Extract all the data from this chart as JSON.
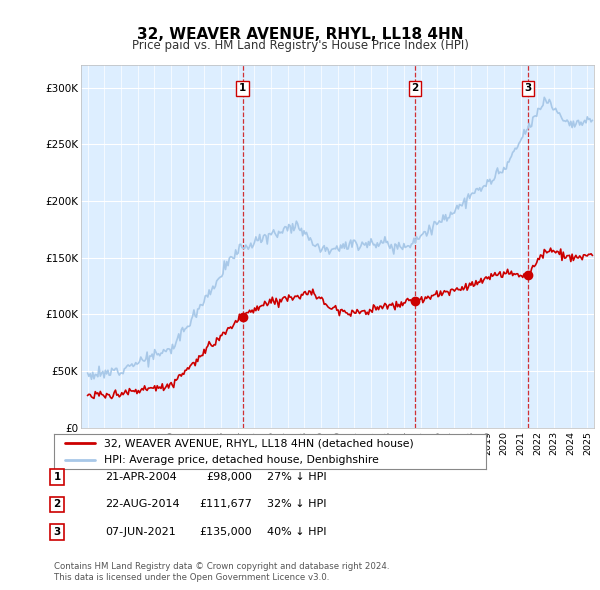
{
  "title": "32, WEAVER AVENUE, RHYL, LL18 4HN",
  "subtitle": "Price paid vs. HM Land Registry's House Price Index (HPI)",
  "hpi_color": "#a8c8e8",
  "price_color": "#cc0000",
  "background_chart": "#ddeeff",
  "sale_year_nums": [
    2004.31,
    2014.64,
    2021.44
  ],
  "sale_prices": [
    98000,
    111677,
    135000
  ],
  "sale_labels": [
    "1",
    "2",
    "3"
  ],
  "sale_hpi_pct": [
    "27% ↓ HPI",
    "32% ↓ HPI",
    "40% ↓ HPI"
  ],
  "sale_date_labels": [
    "21-APR-2004",
    "22-AUG-2014",
    "07-JUN-2021"
  ],
  "sale_price_labels": [
    "£98,000",
    "£111,677",
    "£135,000"
  ],
  "legend_house": "32, WEAVER AVENUE, RHYL, LL18 4HN (detached house)",
  "legend_hpi": "HPI: Average price, detached house, Denbighshire",
  "footnote1": "Contains HM Land Registry data © Crown copyright and database right 2024.",
  "footnote2": "This data is licensed under the Open Government Licence v3.0.",
  "ylim": [
    0,
    320000
  ],
  "yticks": [
    0,
    50000,
    100000,
    150000,
    200000,
    250000,
    300000
  ],
  "ytick_labels": [
    "£0",
    "£50K",
    "£100K",
    "£150K",
    "£200K",
    "£250K",
    "£300K"
  ],
  "xlim_left": 1994.6,
  "xlim_right": 2025.4
}
